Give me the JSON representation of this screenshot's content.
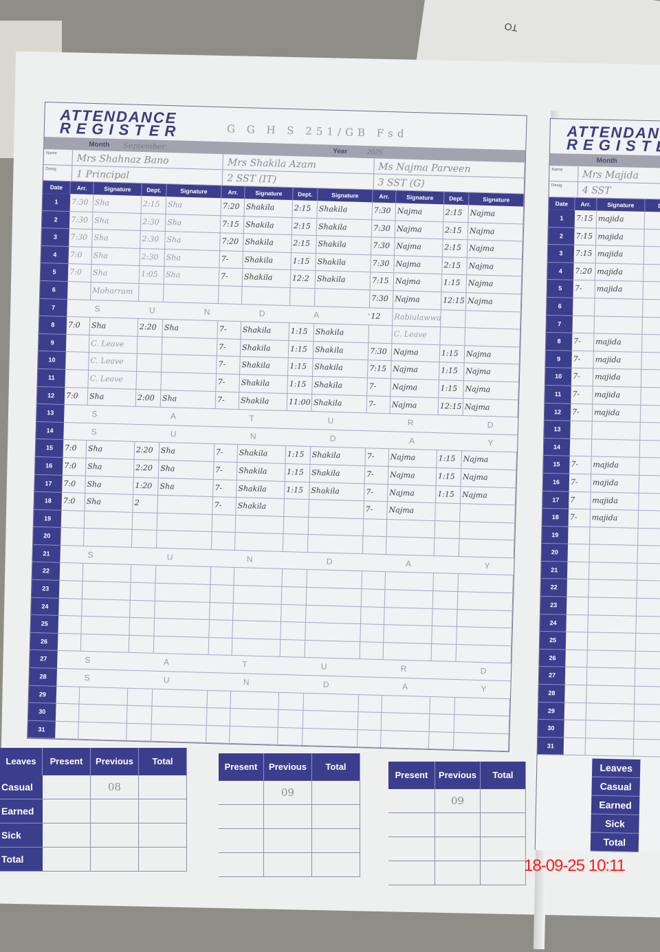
{
  "other_paper": {
    "text": "TO"
  },
  "register": {
    "title_line1": "ATTENDANCE",
    "title_line2": "REGISTER",
    "school": "G G H S  251/GB  Fsd",
    "month_label": "Month",
    "month": "September",
    "year_label": "Year",
    "year": "2025",
    "name_label": "Name",
    "designation_label": "Desig.",
    "staff": [
      {
        "name": "Mrs Shahnaz Bano",
        "designation": "1 Principal"
      },
      {
        "name": "Mrs Shakila Azam",
        "designation": "2 SST (IT)"
      },
      {
        "name": "Ms Najma Parveen",
        "designation": "3 SST (G)"
      }
    ],
    "columns": {
      "date": "Date",
      "arr": "Arr.",
      "signature": "Signature",
      "dept": "Dept."
    },
    "rows": [
      {
        "date": "1",
        "cells": [
          [
            "7:30",
            "Sha",
            "2:15",
            "Sha"
          ],
          [
            "7:20",
            "Shakila",
            "2:15",
            "Shakila"
          ],
          [
            "7:30",
            "Najma",
            "2:15",
            "Najma"
          ]
        ]
      },
      {
        "date": "2",
        "cells": [
          [
            "7:30",
            "Sha",
            "2:30",
            "Sha"
          ],
          [
            "7:15",
            "Shakila",
            "2:15",
            "Shakila"
          ],
          [
            "7:30",
            "Najma",
            "2:15",
            "Najma"
          ]
        ]
      },
      {
        "date": "3",
        "cells": [
          [
            "7:30",
            "Sha",
            "2:30",
            "Sha"
          ],
          [
            "7:20",
            "Shakila",
            "2:15",
            "Shakila"
          ],
          [
            "7:30",
            "Najma",
            "2:15",
            "Najma"
          ]
        ]
      },
      {
        "date": "4",
        "cells": [
          [
            "7:0",
            "Sha",
            "2:30",
            "Sha"
          ],
          [
            "7-",
            "Shakila",
            "1:15",
            "Shakila"
          ],
          [
            "7:30",
            "Najma",
            "2:15",
            "Najma"
          ]
        ]
      },
      {
        "date": "5",
        "cells": [
          [
            "7:0",
            "Sha",
            "1:05",
            "Sha"
          ],
          [
            "7-",
            "Shakila",
            "12:2",
            "Shakila"
          ],
          [
            "7:15",
            "Najma",
            "1:15",
            "Najma"
          ]
        ]
      },
      {
        "date": "6",
        "cells": [
          [
            "",
            "Moharram",
            "",
            ""
          ],
          [
            "",
            "",
            "",
            ""
          ],
          [
            "7:30",
            "Najma",
            "12:15",
            "Najma"
          ]
        ]
      },
      {
        "date": "7",
        "note": "S U N D A Y",
        "cells": [
          [
            "",
            "",
            "",
            ""
          ],
          [
            "",
            "",
            "",
            ""
          ],
          [
            "12",
            "Rabiulawwal",
            "",
            ""
          ]
        ]
      },
      {
        "date": "8",
        "cells": [
          [
            "7:0",
            "Sha",
            "2:20",
            "Sha"
          ],
          [
            "7-",
            "Shakila",
            "1:15",
            "Shakila"
          ],
          [
            "",
            "C. Leave",
            "",
            ""
          ]
        ]
      },
      {
        "date": "9",
        "cells": [
          [
            "",
            "C. Leave",
            "",
            ""
          ],
          [
            "7-",
            "Shakila",
            "1:15",
            "Shakila"
          ],
          [
            "7:30",
            "Najma",
            "1:15",
            "Najma"
          ]
        ]
      },
      {
        "date": "10",
        "cells": [
          [
            "",
            "C. Leave",
            "",
            ""
          ],
          [
            "7-",
            "Shakila",
            "1:15",
            "Shakila"
          ],
          [
            "7:15",
            "Najma",
            "1:15",
            "Najma"
          ]
        ]
      },
      {
        "date": "11",
        "cells": [
          [
            "",
            "C. Leave",
            "",
            ""
          ],
          [
            "7-",
            "Shakila",
            "1:15",
            "Shakila"
          ],
          [
            "7-",
            "Najma",
            "1:15",
            "Najma"
          ]
        ]
      },
      {
        "date": "12",
        "cells": [
          [
            "7:0",
            "Sha",
            "2:00",
            "Sha"
          ],
          [
            "7-",
            "Shakila",
            "11:00",
            "Shakila"
          ],
          [
            "7-",
            "Najma",
            "12:15",
            "Najma"
          ]
        ]
      },
      {
        "date": "13",
        "note": "S A T U R D A Y"
      },
      {
        "date": "14",
        "note": "S U N D A Y"
      },
      {
        "date": "15",
        "cells": [
          [
            "7:0",
            "Sha",
            "2:20",
            "Sha"
          ],
          [
            "7-",
            "Shakila",
            "1:15",
            "Shakila"
          ],
          [
            "7-",
            "Najma",
            "1:15",
            "Najma"
          ]
        ]
      },
      {
        "date": "16",
        "cells": [
          [
            "7:0",
            "Sha",
            "2:20",
            "Sha"
          ],
          [
            "7-",
            "Shakila",
            "1:15",
            "Shakila"
          ],
          [
            "7-",
            "Najma",
            "1:15",
            "Najma"
          ]
        ]
      },
      {
        "date": "17",
        "cells": [
          [
            "7:0",
            "Sha",
            "1:20",
            "Sha"
          ],
          [
            "7-",
            "Shakila",
            "1:15",
            "Shakila"
          ],
          [
            "7-",
            "Najma",
            "1:15",
            "Najma"
          ]
        ]
      },
      {
        "date": "18",
        "cells": [
          [
            "7:0",
            "Sha",
            "2",
            ""
          ],
          [
            "7-",
            "Shakila",
            "",
            ""
          ],
          [
            "7-",
            "Najma",
            "",
            ""
          ]
        ]
      },
      {
        "date": "19"
      },
      {
        "date": "20"
      },
      {
        "date": "21",
        "note": "S U N D A Y"
      },
      {
        "date": "22"
      },
      {
        "date": "23"
      },
      {
        "date": "24"
      },
      {
        "date": "25"
      },
      {
        "date": "26"
      },
      {
        "date": "27",
        "note": "S A T U R D A Y"
      },
      {
        "date": "28",
        "note": "S U N D A Y"
      },
      {
        "date": "29"
      },
      {
        "date": "30"
      },
      {
        "date": "31"
      }
    ],
    "leaves": {
      "headers": [
        "Leaves",
        "Present",
        "Previous",
        "Total"
      ],
      "types": [
        "Casual",
        "Earned",
        "Sick",
        "Total"
      ],
      "previous": [
        "08",
        "09",
        "09"
      ]
    }
  },
  "right_page": {
    "title_line1": "ATTENDANCE",
    "title_line2": "REGISTER",
    "month_label": "Month",
    "name": "Mrs Majida",
    "designation": "4 SST",
    "columns": {
      "date": "Date",
      "arr": "Arr.",
      "signature": "Signature",
      "dept": "Dept."
    },
    "rows": [
      [
        "1",
        "7:15",
        "majida"
      ],
      [
        "2",
        "7:15",
        "majida"
      ],
      [
        "3",
        "7:15",
        "majida"
      ],
      [
        "4",
        "7:20",
        "majida"
      ],
      [
        "5",
        "7-",
        "majida"
      ],
      [
        "6",
        "",
        ""
      ],
      [
        "7",
        "",
        ""
      ],
      [
        "8",
        "7-",
        "majida"
      ],
      [
        "9",
        "7-",
        "majida"
      ],
      [
        "10",
        "7-",
        "majida"
      ],
      [
        "11",
        "7-",
        "majida"
      ],
      [
        "12",
        "7-",
        "majida"
      ],
      [
        "13",
        "",
        ""
      ],
      [
        "14",
        "",
        ""
      ],
      [
        "15",
        "7-",
        "majida"
      ],
      [
        "16",
        "7-",
        "majida"
      ],
      [
        "17",
        "7",
        "majida"
      ],
      [
        "18",
        "7-",
        "majida"
      ],
      [
        "19",
        "",
        ""
      ],
      [
        "20",
        "",
        ""
      ],
      [
        "21",
        "",
        ""
      ],
      [
        "22",
        "",
        ""
      ],
      [
        "23",
        "",
        ""
      ],
      [
        "24",
        "",
        ""
      ],
      [
        "25",
        "",
        ""
      ],
      [
        "26",
        "",
        ""
      ],
      [
        "27",
        "",
        ""
      ],
      [
        "28",
        "",
        ""
      ],
      [
        "29",
        "",
        ""
      ],
      [
        "30",
        "",
        ""
      ],
      [
        "31",
        "",
        ""
      ]
    ],
    "leaves_types": [
      "Leaves",
      "Casual",
      "Earned",
      "Sick",
      "Total"
    ]
  },
  "timestamp": "18-09-25 10:11",
  "colors": {
    "header_navy": "#3b3e8c",
    "timestamp": "#ff1a1a"
  }
}
